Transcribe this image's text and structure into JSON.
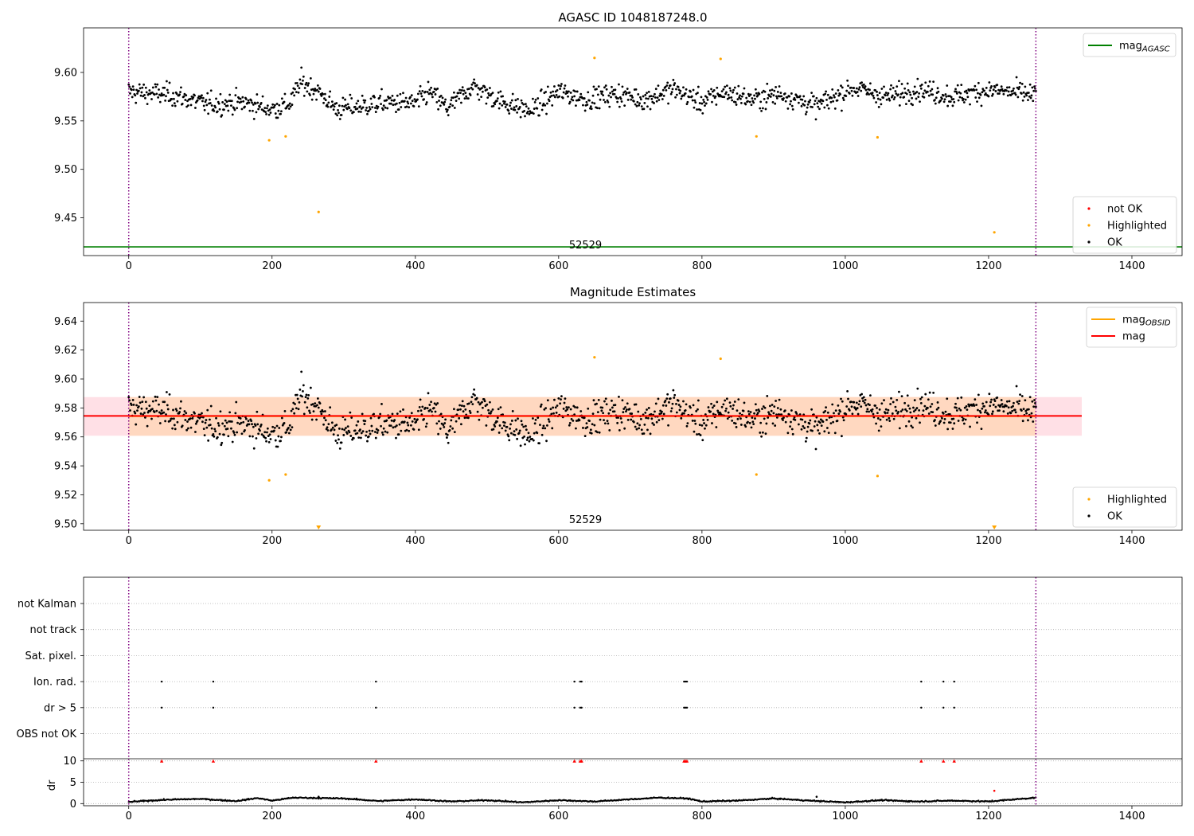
{
  "chart_data": [
    {
      "type": "scatter",
      "title": "AGASC ID 1048187248.0",
      "xlim": [
        -63,
        1470
      ],
      "ylim": [
        9.411,
        9.646
      ],
      "x_ticks": [
        0,
        200,
        400,
        600,
        800,
        1000,
        1200,
        1400
      ],
      "y_ticks": [
        9.45,
        9.5,
        9.55,
        9.6
      ],
      "y_tick_labels": [
        "9.45",
        "9.50",
        "9.55",
        "9.60"
      ],
      "vlines": [
        0,
        1266
      ],
      "vline_color": "#800080",
      "hline": {
        "name": "mag_AGASC",
        "y": 9.42,
        "color": "#008000"
      },
      "obsid_label": {
        "text": "52529",
        "x": 633
      },
      "legend_top": [
        {
          "label": "mag",
          "sub": "AGASC",
          "color": "#008000",
          "kind": "line"
        }
      ],
      "legend_bottom": [
        {
          "label": "not OK",
          "color": "#ff0000",
          "kind": "point"
        },
        {
          "label": "Highlighted",
          "color": "#ffa500",
          "kind": "point"
        },
        {
          "label": "OK",
          "color": "#000000",
          "kind": "point"
        }
      ],
      "ok_series": {
        "name": "OK",
        "color": "#000000",
        "x_start": 0,
        "x_end": 1266,
        "baseline": [
          [
            0,
            9.58
          ],
          [
            60,
            9.577
          ],
          [
            110,
            9.567
          ],
          [
            160,
            9.569
          ],
          [
            200,
            9.562
          ],
          [
            225,
            9.568
          ],
          [
            240,
            9.59
          ],
          [
            265,
            9.58
          ],
          [
            290,
            9.562
          ],
          [
            330,
            9.566
          ],
          [
            360,
            9.569
          ],
          [
            400,
            9.568
          ],
          [
            420,
            9.58
          ],
          [
            445,
            9.563
          ],
          [
            480,
            9.586
          ],
          [
            520,
            9.57
          ],
          [
            560,
            9.56
          ],
          [
            600,
            9.58
          ],
          [
            640,
            9.572
          ],
          [
            680,
            9.578
          ],
          [
            720,
            9.572
          ],
          [
            760,
            9.583
          ],
          [
            800,
            9.569
          ],
          [
            830,
            9.58
          ],
          [
            870,
            9.572
          ],
          [
            910,
            9.578
          ],
          [
            960,
            9.565
          ],
          [
            1010,
            9.584
          ],
          [
            1060,
            9.575
          ],
          [
            1100,
            9.583
          ],
          [
            1150,
            9.575
          ],
          [
            1200,
            9.582
          ],
          [
            1266,
            9.577
          ]
        ]
      },
      "highlighted": {
        "name": "Highlighted",
        "color": "#ffa500",
        "points": [
          [
            196,
            9.53
          ],
          [
            219,
            9.534
          ],
          [
            265,
            9.456
          ],
          [
            650,
            9.615
          ],
          [
            826,
            9.614
          ],
          [
            876,
            9.534
          ],
          [
            1045,
            9.533
          ],
          [
            1208,
            9.435
          ]
        ]
      }
    },
    {
      "type": "scatter",
      "title": "Magnitude Estimates",
      "xlim": [
        -63,
        1470
      ],
      "ylim": [
        9.4955,
        9.6528
      ],
      "x_ticks": [
        0,
        200,
        400,
        600,
        800,
        1000,
        1200,
        1400
      ],
      "y_ticks": [
        9.5,
        9.52,
        9.54,
        9.56,
        9.58,
        9.6,
        9.62,
        9.64
      ],
      "y_tick_labels": [
        "9.50",
        "9.52",
        "9.54",
        "9.56",
        "9.58",
        "9.60",
        "9.62",
        "9.64"
      ],
      "vlines": [
        0,
        1266
      ],
      "vline_color": "#800080",
      "mag_line": {
        "name": "mag",
        "y": 9.5745,
        "x_range": [
          -63,
          1330
        ],
        "color": "#ff0000"
      },
      "mag_band": {
        "y_range": [
          9.5608,
          9.5875
        ],
        "x_range": [
          -63,
          1330
        ],
        "color": "#ffe0e6"
      },
      "obsid_band": {
        "name": "mag_OBSID",
        "y": 9.5743,
        "y_range": [
          9.5608,
          9.5875
        ],
        "x_range": [
          0,
          1266
        ],
        "color": "#ffa500",
        "fill": "#ffd8c0"
      },
      "obsid_label": {
        "text": "52529",
        "x": 633
      },
      "legend_top": [
        {
          "label": "mag",
          "sub": "OBSID",
          "color": "#ffa500",
          "kind": "line"
        },
        {
          "label": "mag",
          "sub": "",
          "color": "#ff0000",
          "kind": "line"
        }
      ],
      "legend_bottom": [
        {
          "label": "Highlighted",
          "color": "#ffa500",
          "kind": "point"
        },
        {
          "label": "OK",
          "color": "#000000",
          "kind": "point"
        }
      ],
      "highlighted": {
        "name": "Highlighted",
        "color": "#ffa500",
        "points": [
          [
            196,
            9.53
          ],
          [
            219,
            9.534
          ],
          [
            650,
            9.615
          ],
          [
            826,
            9.614
          ],
          [
            876,
            9.534
          ],
          [
            1045,
            9.533
          ]
        ],
        "clipped_markers_x": [
          265,
          1208
        ]
      }
    },
    {
      "type": "scatter",
      "title": "",
      "xlim": [
        -63,
        1470
      ],
      "vlines": [
        0,
        1266
      ],
      "vline_color": "#800080",
      "flag_rows": [
        "not Kalman",
        "not track",
        "Sat. pixel.",
        "Ion. rad.",
        "dr > 5",
        "OBS not OK"
      ],
      "flag_points": {
        "Ion. rad.": [
          46,
          118,
          345,
          622,
          630,
          632,
          775,
          777,
          779,
          1106,
          1137,
          1152
        ],
        "dr > 5": [
          46,
          118,
          345,
          622,
          630,
          632,
          775,
          777,
          779,
          1106,
          1137,
          1152
        ]
      },
      "dr_axis": {
        "ylabel": "dr",
        "ylim": [
          -0.5,
          10.5
        ],
        "y_ticks": [
          0,
          5,
          10
        ],
        "x_ticks": [
          0,
          200,
          400,
          600,
          800,
          1000,
          1200,
          1400
        ],
        "red_markers": [
          [
            46,
            9.9
          ],
          [
            118,
            9.9
          ],
          [
            345,
            9.9
          ],
          [
            622,
            9.9
          ],
          [
            630,
            9.9
          ],
          [
            632,
            9.9
          ],
          [
            775,
            9.9
          ],
          [
            777,
            9.9
          ],
          [
            779,
            9.9
          ],
          [
            1106,
            9.9
          ],
          [
            1137,
            9.9
          ],
          [
            1152,
            9.9
          ]
        ],
        "outliers": [
          [
            265,
            1.6
          ],
          [
            960,
            1.6
          ],
          [
            1208,
            3.0
          ]
        ],
        "trend": [
          [
            0,
            0.4
          ],
          [
            50,
            0.9
          ],
          [
            100,
            1.1
          ],
          [
            150,
            0.6
          ],
          [
            180,
            1.3
          ],
          [
            200,
            0.7
          ],
          [
            230,
            1.4
          ],
          [
            300,
            1.2
          ],
          [
            350,
            0.6
          ],
          [
            400,
            1.0
          ],
          [
            450,
            0.5
          ],
          [
            500,
            0.8
          ],
          [
            550,
            0.3
          ],
          [
            600,
            0.8
          ],
          [
            650,
            0.5
          ],
          [
            700,
            1.0
          ],
          [
            740,
            1.4
          ],
          [
            780,
            1.2
          ],
          [
            800,
            0.5
          ],
          [
            850,
            0.7
          ],
          [
            900,
            1.2
          ],
          [
            950,
            0.7
          ],
          [
            1000,
            0.3
          ],
          [
            1050,
            0.8
          ],
          [
            1100,
            0.5
          ],
          [
            1150,
            0.7
          ],
          [
            1200,
            0.5
          ],
          [
            1266,
            1.4
          ]
        ]
      }
    }
  ]
}
